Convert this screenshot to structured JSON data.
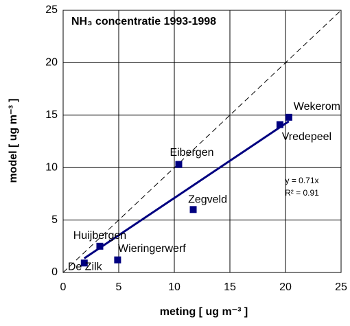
{
  "chart_data": {
    "type": "scatter",
    "title": "NH₃ concentratie 1993-1998",
    "x_label": "meting  [ ug m⁻³ ]",
    "y_label": "model  [ ug m⁻³ ]",
    "labels": [
      "De Zilk",
      "Huijbergen",
      "Wieringerwerf",
      "Eibergen",
      "Zegveld",
      "Vredepeel",
      "Wekerom"
    ],
    "x": [
      1.9,
      3.3,
      4.9,
      10.4,
      11.7,
      19.5,
      20.3
    ],
    "values": [
      0.9,
      2.5,
      1.2,
      10.3,
      6.0,
      14.1,
      14.8
    ],
    "color": "#000080",
    "xlim": [
      0,
      25
    ],
    "xticks": [
      0,
      5,
      10,
      15,
      20,
      25
    ],
    "ylim": [
      0,
      25
    ],
    "yticks": [
      0,
      5,
      10,
      15,
      20,
      25
    ],
    "grid": true,
    "trendline": {
      "slope": 0.71,
      "label": "y = 0.71x",
      "r2_label": "R² = 0.91"
    }
  }
}
